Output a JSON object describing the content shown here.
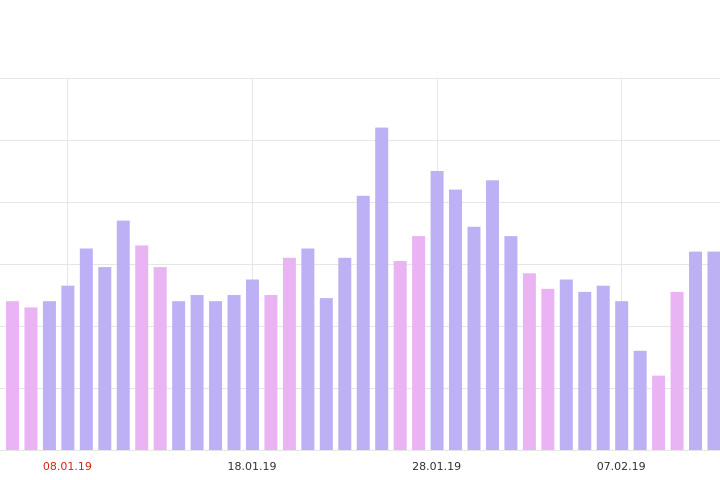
{
  "chart_data": {
    "type": "bar",
    "title": "",
    "xlabel": "",
    "ylabel": "",
    "ylim": [
      0,
      60
    ],
    "grid": {
      "horizontal": true,
      "vertical": true
    },
    "colors": {
      "weekday": "#bdb0f4",
      "weekend": "#eab3f4",
      "tick_default": "#333333",
      "tick_highlight": "#d9231d",
      "grid": "#e6e6e6"
    },
    "x": [
      "05.01.19",
      "06.01.19",
      "07.01.19",
      "08.01.19",
      "09.01.19",
      "10.01.19",
      "11.01.19",
      "12.01.19",
      "13.01.19",
      "14.01.19",
      "15.01.19",
      "16.01.19",
      "17.01.19",
      "18.01.19",
      "19.01.19",
      "20.01.19",
      "21.01.19",
      "22.01.19",
      "23.01.19",
      "24.01.19",
      "25.01.19",
      "26.01.19",
      "27.01.19",
      "28.01.19",
      "29.01.19",
      "30.01.19",
      "31.01.19",
      "01.02.19",
      "02.02.19",
      "03.02.19",
      "04.02.19",
      "05.02.19",
      "06.02.19",
      "07.02.19",
      "08.02.19",
      "09.02.19",
      "10.02.19",
      "11.02.19",
      "12.02.19",
      "13.02.19"
    ],
    "values": [
      24,
      23,
      24,
      26.5,
      32.5,
      29.5,
      37,
      33,
      29.5,
      24,
      25,
      24,
      25,
      27.5,
      25,
      31,
      32.5,
      24.5,
      31,
      41,
      52,
      30.5,
      34.5,
      45,
      42,
      36,
      43.5,
      34.5,
      28.5,
      26,
      27.5,
      25.5,
      26.5,
      24,
      16,
      12,
      25.5,
      32,
      32,
      33
    ],
    "weekend": [
      true,
      true,
      false,
      false,
      false,
      false,
      false,
      true,
      true,
      false,
      false,
      false,
      false,
      false,
      true,
      true,
      false,
      false,
      false,
      false,
      false,
      true,
      true,
      false,
      false,
      false,
      false,
      false,
      true,
      true,
      false,
      false,
      false,
      false,
      false,
      true,
      true,
      false,
      false,
      false
    ],
    "tick_labels": [
      {
        "label": "08.01.19",
        "index": 3,
        "highlight": true
      },
      {
        "label": "18.01.19",
        "index": 13,
        "highlight": false
      },
      {
        "label": "28.01.19",
        "index": 23,
        "highlight": false
      },
      {
        "label": "07.02.19",
        "index": 33,
        "highlight": false
      }
    ]
  }
}
